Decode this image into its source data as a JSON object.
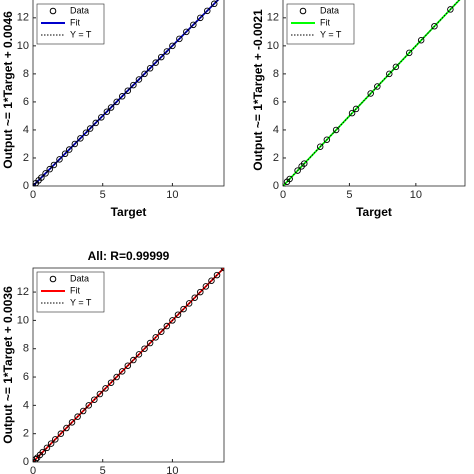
{
  "chart_data": [
    {
      "type": "scatter",
      "xlabel": "Target",
      "ylabel": "Output ~= 1*Target + 0.0046",
      "xlim": [
        0,
        13.7
      ],
      "ylim": [
        0,
        13.7
      ],
      "xticks": [
        0,
        5,
        10
      ],
      "yticks": [
        0,
        2,
        4,
        6,
        8,
        10,
        12
      ],
      "series": [
        {
          "name": "Data",
          "color": "#000000",
          "x": [
            0,
            0.2,
            0.4,
            0.6,
            0.9,
            1.2,
            1.5,
            1.9,
            2.3,
            2.6,
            3.0,
            3.4,
            3.8,
            4.1,
            4.5,
            4.9,
            5.3,
            5.6,
            6.0,
            6.4,
            6.8,
            7.2,
            7.6,
            8.0,
            8.4,
            8.8,
            9.2,
            9.6,
            10.0,
            10.5,
            11.0,
            11.5,
            12.0,
            12.5,
            13.0,
            13.7
          ],
          "values": [
            0,
            0.2,
            0.4,
            0.6,
            0.9,
            1.2,
            1.5,
            1.9,
            2.3,
            2.6,
            3.0,
            3.4,
            3.8,
            4.1,
            4.5,
            4.9,
            5.3,
            5.6,
            6.0,
            6.4,
            6.8,
            7.2,
            7.6,
            8.0,
            8.4,
            8.8,
            9.2,
            9.6,
            10.0,
            10.5,
            11.0,
            11.5,
            12.0,
            12.5,
            13.0,
            13.7
          ]
        },
        {
          "name": "Fit",
          "color": "#0000cc",
          "x": [
            0,
            13.7
          ],
          "values": [
            0.0046,
            13.7046
          ]
        },
        {
          "name": "Y = T",
          "color": "#000000",
          "x": [
            0,
            13.7
          ],
          "values": [
            0,
            13.7
          ]
        }
      ]
    },
    {
      "type": "scatter",
      "xlabel": "Target",
      "ylabel": "Output ~= 1*Target + -0.0021",
      "xlim": [
        0,
        13.7
      ],
      "ylim": [
        0,
        13.7
      ],
      "xticks": [
        0,
        5,
        10
      ],
      "yticks": [
        0,
        2,
        4,
        6,
        8,
        10,
        12
      ],
      "series": [
        {
          "name": "Data",
          "color": "#000000",
          "x": [
            0.3,
            0.5,
            1.1,
            1.4,
            1.6,
            2.8,
            3.3,
            4.0,
            5.2,
            5.5,
            6.6,
            7.1,
            8.0,
            8.5,
            9.5,
            10.4,
            11.4,
            12.6
          ],
          "values": [
            0.3,
            0.5,
            1.1,
            1.4,
            1.6,
            2.8,
            3.3,
            4.0,
            5.2,
            5.5,
            6.6,
            7.1,
            8.0,
            8.5,
            9.5,
            10.4,
            11.4,
            12.6
          ]
        },
        {
          "name": "Fit",
          "color": "#00ff00",
          "x": [
            0,
            13.7
          ],
          "values": [
            -0.0021,
            13.6979
          ]
        },
        {
          "name": "Y = T",
          "color": "#000000",
          "x": [
            0,
            13.7
          ],
          "values": [
            0,
            13.7
          ]
        }
      ]
    },
    {
      "type": "scatter",
      "title": "All: R=0.99999",
      "ylabel": "Output ~= 1*Target + 0.0036",
      "xlim": [
        0,
        13.7
      ],
      "ylim": [
        0,
        13.7
      ],
      "xticks": [
        0,
        5,
        10
      ],
      "yticks": [
        0,
        2,
        4,
        6,
        8,
        10,
        12
      ],
      "series": [
        {
          "name": "Data",
          "color": "#000000",
          "x": [
            0,
            0.2,
            0.3,
            0.5,
            0.7,
            1.0,
            1.3,
            1.6,
            2.0,
            2.4,
            2.8,
            3.2,
            3.6,
            4.0,
            4.4,
            4.8,
            5.2,
            5.6,
            6.0,
            6.4,
            6.8,
            7.2,
            7.6,
            8.0,
            8.4,
            8.8,
            9.2,
            9.6,
            10.0,
            10.4,
            10.8,
            11.2,
            11.6,
            12.0,
            12.4,
            12.8,
            13.2,
            13.7
          ],
          "values": [
            0,
            0.2,
            0.3,
            0.5,
            0.7,
            1.0,
            1.3,
            1.6,
            2.0,
            2.4,
            2.8,
            3.2,
            3.6,
            4.0,
            4.4,
            4.8,
            5.2,
            5.6,
            6.0,
            6.4,
            6.8,
            7.2,
            7.6,
            8.0,
            8.4,
            8.8,
            9.2,
            9.6,
            10.0,
            10.4,
            10.8,
            11.2,
            11.6,
            12.0,
            12.4,
            12.8,
            13.2,
            13.7
          ]
        },
        {
          "name": "Fit",
          "color": "#ff0000",
          "x": [
            0,
            13.7
          ],
          "values": [
            0.0036,
            13.7036
          ]
        },
        {
          "name": "Y = T",
          "color": "#000000",
          "x": [
            0,
            13.7
          ],
          "values": [
            0,
            13.7
          ]
        }
      ]
    }
  ]
}
